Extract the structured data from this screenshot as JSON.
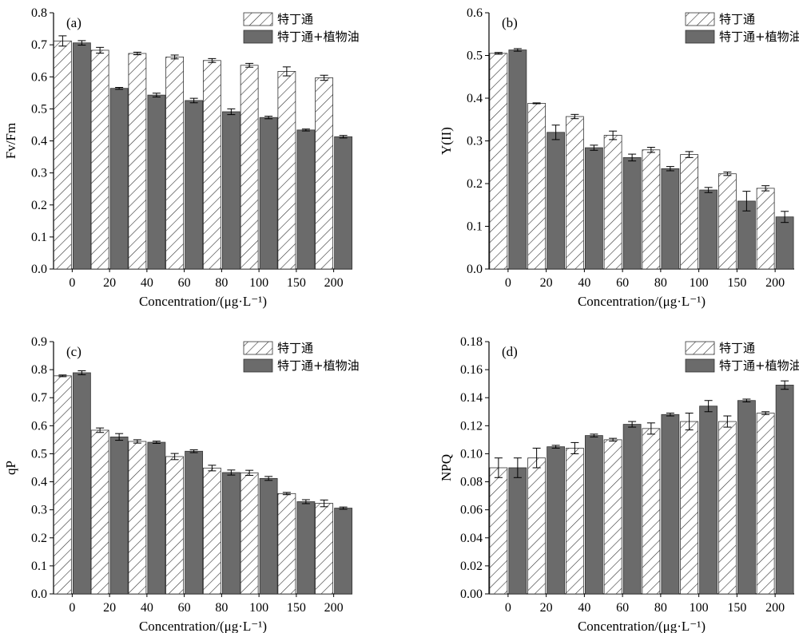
{
  "colors": {
    "series_solid": "#6b6b6b",
    "bar_outline": "#333333",
    "hatch_line": "#333333",
    "axis": "#000000"
  },
  "chart_data": [
    {
      "type": "bar",
      "panel_label": "(a)",
      "xlabel": "Concentration/(μg·L⁻¹)",
      "ylabel": "Fv/Fm",
      "ylim": [
        0,
        0.8
      ],
      "yticks": [
        "0.0",
        "0.1",
        "0.2",
        "0.3",
        "0.4",
        "0.5",
        "0.6",
        "0.7",
        "0.8"
      ],
      "categories": [
        "0",
        "20",
        "40",
        "60",
        "80",
        "100",
        "150",
        "200"
      ],
      "legend_position": "top-right",
      "grid": false,
      "series": [
        {
          "name": "特丁通",
          "fill": "hatched",
          "values": [
            0.712,
            0.683,
            0.673,
            0.662,
            0.651,
            0.636,
            0.617,
            0.597
          ],
          "errors": [
            0.016,
            0.009,
            0.004,
            0.006,
            0.006,
            0.006,
            0.014,
            0.008
          ]
        },
        {
          "name": "特丁通+植物油",
          "fill": "solid",
          "values": [
            0.706,
            0.564,
            0.543,
            0.526,
            0.491,
            0.473,
            0.434,
            0.413
          ],
          "errors": [
            0.007,
            0.003,
            0.006,
            0.007,
            0.009,
            0.004,
            0.003,
            0.004
          ]
        }
      ]
    },
    {
      "type": "bar",
      "panel_label": "(b)",
      "xlabel": "Concentration/(μg·L⁻¹)",
      "ylabel": "Y(II)",
      "ylim": [
        0,
        0.6
      ],
      "yticks": [
        "0.0",
        "0.1",
        "0.2",
        "0.3",
        "0.4",
        "0.5",
        "0.6"
      ],
      "categories": [
        "0",
        "20",
        "40",
        "60",
        "80",
        "100",
        "150",
        "200"
      ],
      "legend_position": "top-right",
      "grid": false,
      "series": [
        {
          "name": "特丁通",
          "fill": "hatched",
          "values": [
            0.505,
            0.388,
            0.357,
            0.313,
            0.279,
            0.268,
            0.223,
            0.189
          ],
          "errors": [
            0.002,
            0.001,
            0.005,
            0.01,
            0.006,
            0.007,
            0.004,
            0.006
          ]
        },
        {
          "name": "特丁通+植物油",
          "fill": "solid",
          "values": [
            0.513,
            0.32,
            0.284,
            0.261,
            0.235,
            0.185,
            0.159,
            0.122
          ],
          "errors": [
            0.003,
            0.017,
            0.006,
            0.008,
            0.005,
            0.006,
            0.023,
            0.013
          ]
        }
      ]
    },
    {
      "type": "bar",
      "panel_label": "(c)",
      "xlabel": "Concentration/(μg·L⁻¹)",
      "ylabel": "qP",
      "ylim": [
        0,
        0.9
      ],
      "yticks": [
        "0.0",
        "0.1",
        "0.2",
        "0.3",
        "0.4",
        "0.5",
        "0.6",
        "0.7",
        "0.8",
        "0.9"
      ],
      "categories": [
        "0",
        "20",
        "40",
        "60",
        "80",
        "100",
        "150",
        "200"
      ],
      "legend_position": "top-right",
      "grid": false,
      "series": [
        {
          "name": "特丁通",
          "fill": "hatched",
          "values": [
            0.778,
            0.584,
            0.544,
            0.49,
            0.449,
            0.432,
            0.358,
            0.323
          ],
          "errors": [
            0.003,
            0.008,
            0.006,
            0.011,
            0.01,
            0.009,
            0.004,
            0.012
          ]
        },
        {
          "name": "特丁通+植物油",
          "fill": "solid",
          "values": [
            0.789,
            0.56,
            0.541,
            0.509,
            0.433,
            0.412,
            0.329,
            0.306
          ],
          "errors": [
            0.007,
            0.012,
            0.004,
            0.005,
            0.009,
            0.007,
            0.007,
            0.004
          ]
        }
      ]
    },
    {
      "type": "bar",
      "panel_label": "(d)",
      "xlabel": "Concentration/(μg·L⁻¹)",
      "ylabel": "NPQ",
      "ylim": [
        0,
        0.18
      ],
      "yticks": [
        "0.00",
        "0.02",
        "0.04",
        "0.06",
        "0.08",
        "0.10",
        "0.12",
        "0.14",
        "0.16",
        "0.18"
      ],
      "categories": [
        "0",
        "20",
        "40",
        "60",
        "80",
        "100",
        "150",
        "200"
      ],
      "legend_position": "top-right",
      "grid": false,
      "series": [
        {
          "name": "特丁通",
          "fill": "hatched",
          "values": [
            0.09,
            0.097,
            0.104,
            0.11,
            0.118,
            0.123,
            0.123,
            0.129
          ],
          "errors": [
            0.007,
            0.007,
            0.004,
            0.001,
            0.004,
            0.006,
            0.004,
            0.001
          ]
        },
        {
          "name": "特丁通+植物油",
          "fill": "solid",
          "values": [
            0.09,
            0.105,
            0.113,
            0.121,
            0.128,
            0.134,
            0.138,
            0.149
          ],
          "errors": [
            0.007,
            0.001,
            0.001,
            0.002,
            0.001,
            0.004,
            0.001,
            0.003
          ]
        }
      ]
    }
  ]
}
